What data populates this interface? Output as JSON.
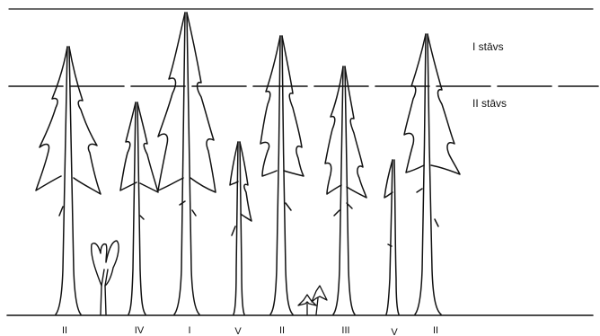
{
  "layers": {
    "top_label": "I stāvs",
    "second_label": "II stāvs"
  },
  "trees": [
    {
      "class_label": "II"
    },
    {
      "class_label": "IV"
    },
    {
      "class_label": "I"
    },
    {
      "class_label": "V"
    },
    {
      "class_label": "II"
    },
    {
      "class_label": "III"
    },
    {
      "class_label": "V"
    },
    {
      "class_label": "II"
    }
  ]
}
